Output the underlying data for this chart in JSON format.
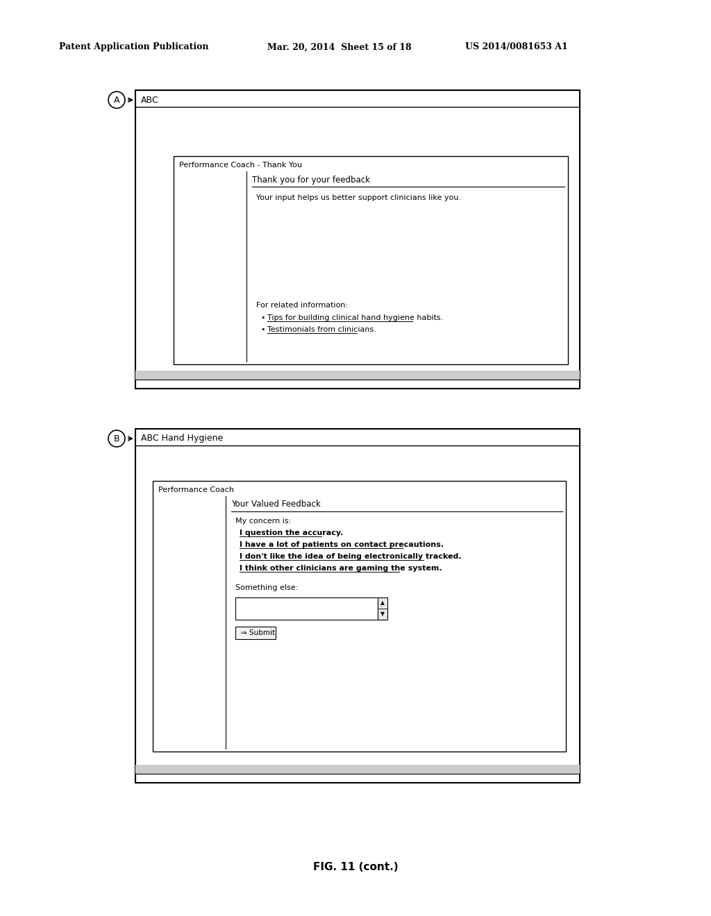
{
  "bg_color": "#ffffff",
  "header_left": "Patent Application Publication",
  "header_mid": "Mar. 20, 2014  Sheet 15 of 18",
  "header_right": "US 2014/0081653 A1",
  "caption": "FIG. 11 (cont.)",
  "panel_A": {
    "label": "A",
    "title_bar": "ABC",
    "inner_box_title": "Performance Coach - Thank You",
    "inner_header": "Thank you for your feedback",
    "body_text": "Your input helps us better support clinicians like you.",
    "related_label": "For related information:",
    "links": [
      "Tips for building clinical hand hygiene habits.",
      "Testimonials from clinicians."
    ]
  },
  "panel_B": {
    "label": "B",
    "title_bar": "ABC Hand Hygiene",
    "inner_box_title": "Performance Coach",
    "inner_header": "Your Valued Feedback",
    "concern_label": "My concern is:",
    "concern_items": [
      "I question the accuracy.",
      "I have a lot of patients on contact precautions.",
      "I don't like the idea of being electronically tracked.",
      "I think other clinicians are gaming the system."
    ],
    "something_else": "Something else:",
    "submit_label": "Submit"
  }
}
